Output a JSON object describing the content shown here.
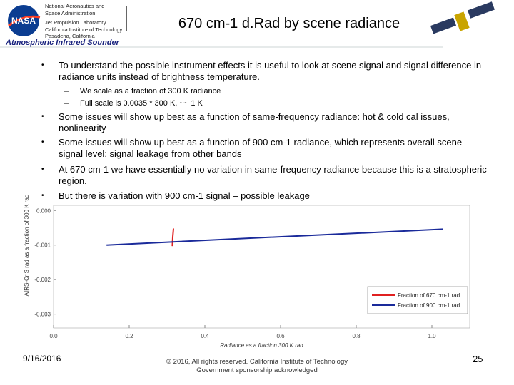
{
  "header": {
    "agency": [
      "National Aeronautics and",
      "Space Administration",
      "Jet Propulsion Laboratory",
      "California Institute of Technology",
      "Pasadena, California"
    ],
    "logo": "NASA",
    "title": "670 cm-1 d.Rad by scene radiance",
    "subtitle": "Atmospheric Infrared Sounder"
  },
  "bullets": [
    {
      "text": "To understand the possible instrument effects it is useful to look at scene signal and signal difference in radiance units instead of brightness temperature.",
      "subs": [
        "We scale as a fraction of 300 K radiance",
        "Full scale is 0.0035 * 300 K, ~~ 1 K"
      ]
    },
    {
      "text": "Some issues will show up best as a function of same-frequency radiance: hot & cold cal issues, nonlinearity"
    },
    {
      "text": "Some issues will show up best as a function of 900 cm-1 radiance, which represents overall scene signal level: signal leakage from other bands"
    },
    {
      "text": "At 670 cm-1 we have essentially no variation in same-frequency radiance because this is a stratospheric region."
    },
    {
      "text": "But there is variation with 900 cm-1 signal – possible leakage"
    }
  ],
  "chart_data": {
    "type": "line",
    "xlabel": "Radiance as a fraction 300 K rad",
    "ylabel": "AIRS-CrIS rad as a fraction of 300 K rad",
    "xlim": [
      0,
      1.1
    ],
    "ylim": [
      -0.0034,
      0.00015
    ],
    "xticks": [
      {
        "value": 0,
        "label": "0.0"
      },
      0.2,
      0.4,
      0.6,
      0.8,
      {
        "value": 1,
        "label": "1.0"
      }
    ],
    "yticks": [
      {
        "value": 0,
        "label": "0.000"
      },
      -0.001,
      -0.002,
      -0.003
    ],
    "legend": "lower right",
    "series": [
      {
        "name": "Fraction of 670 cm-1 rad",
        "color": "#e02020",
        "x": [
          0.314,
          0.315,
          0.317
        ],
        "values": [
          -0.00103,
          -0.00078,
          -0.00052
        ]
      },
      {
        "name": "Fraction of 900 cm-1 rad",
        "color": "#1a2a9a",
        "x": [
          0.14,
          0.5,
          1.03
        ],
        "values": [
          -0.001,
          -0.00081,
          -0.00054
        ]
      }
    ]
  },
  "footer": {
    "date": "9/16/2016",
    "copyright": [
      "© 2016, All rights reserved. California Institute of Technology",
      "Government sponsorship acknowledged"
    ],
    "page": "25"
  }
}
